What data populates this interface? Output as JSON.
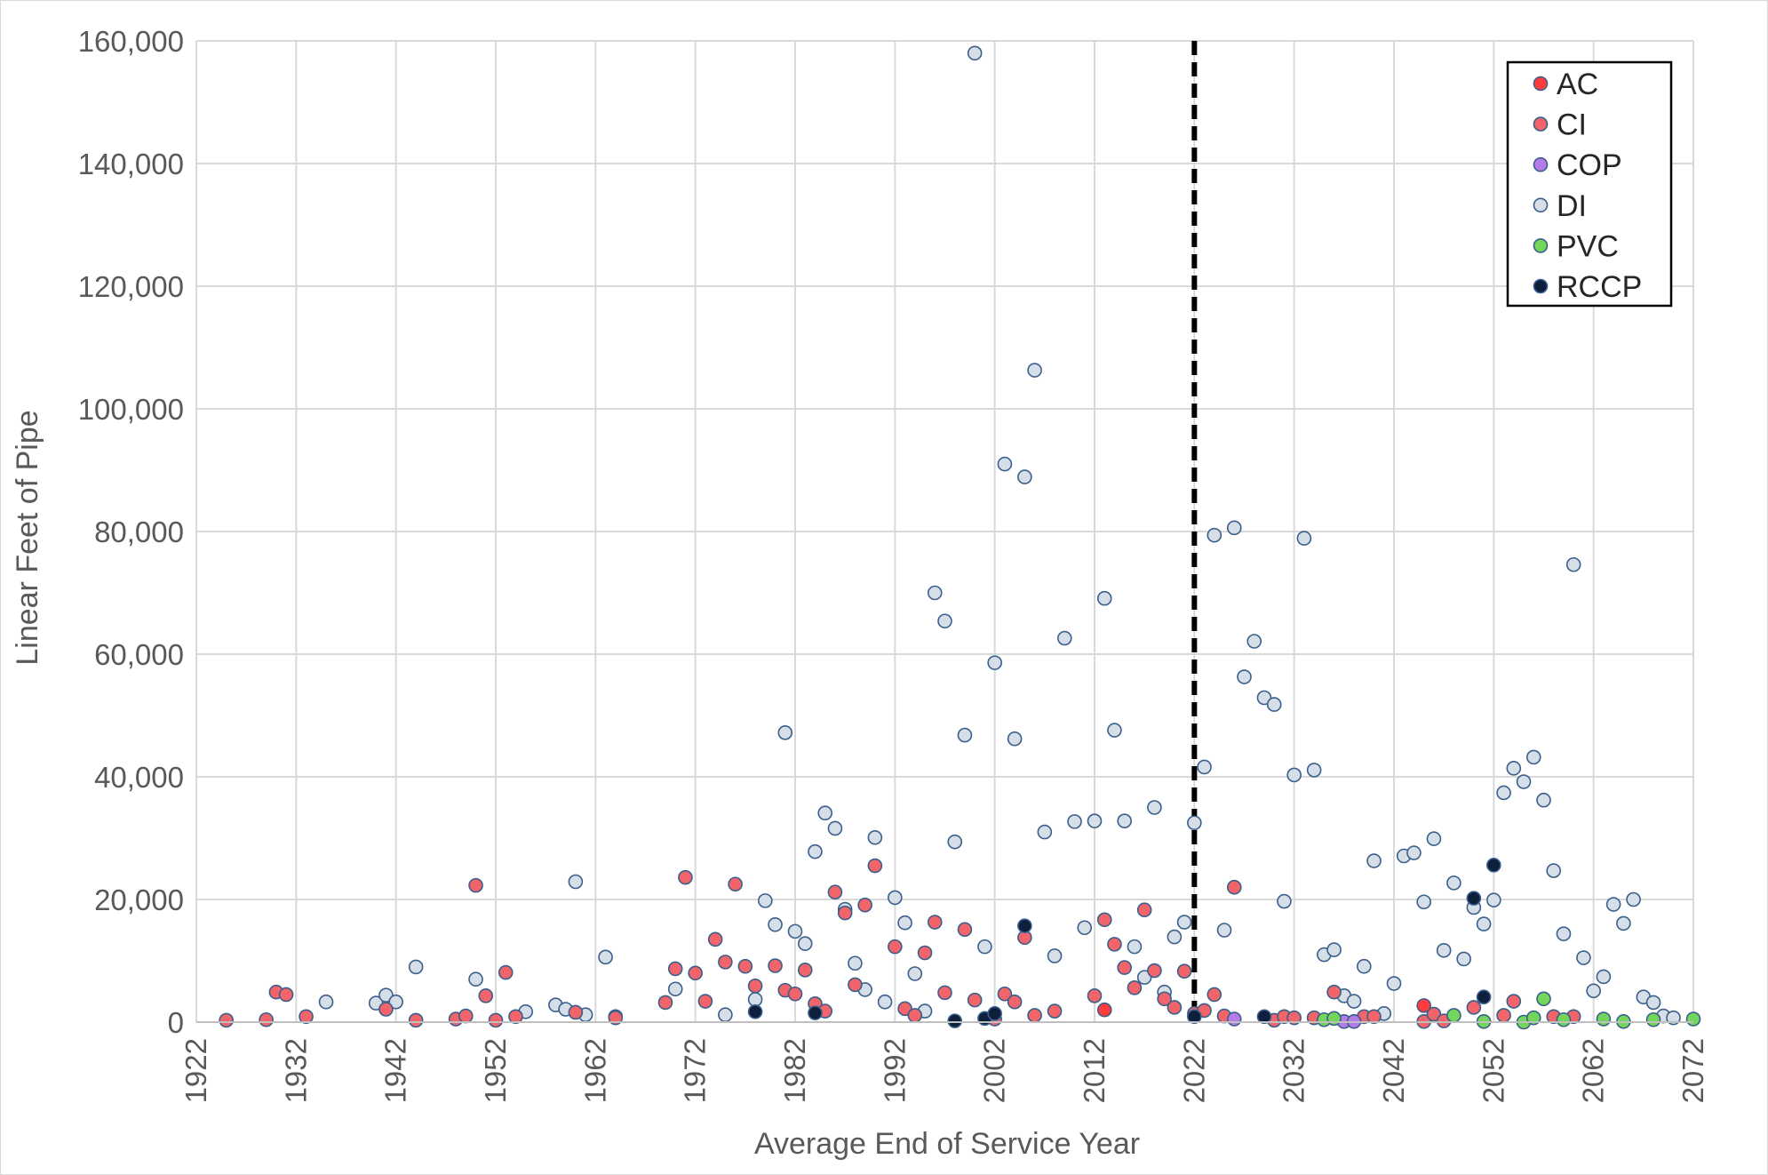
{
  "chart_data": {
    "type": "scatter",
    "title": "",
    "xlabel": "Average End of Service Year",
    "ylabel": "Linear Feet of Pipe",
    "xlim": [
      1922,
      2072
    ],
    "ylim": [
      0,
      160000
    ],
    "x_ticks": [
      "1922",
      "1932",
      "1942",
      "1952",
      "1962",
      "1972",
      "1982",
      "1992",
      "2002",
      "2012",
      "2022",
      "2032",
      "2042",
      "2052",
      "2062",
      "2072"
    ],
    "y_ticks": [
      "0",
      "20,000",
      "40,000",
      "60,000",
      "80,000",
      "100,000",
      "120,000",
      "140,000",
      "160,000"
    ],
    "y_tick_values": [
      0,
      20000,
      40000,
      60000,
      80000,
      100000,
      120000,
      140000,
      160000
    ],
    "grid": true,
    "legend_position": "top-right",
    "reference_line": {
      "x": 2022,
      "style": "dashed",
      "color": "#000000"
    },
    "series": [
      {
        "name": "AC",
        "color": "#ff3b3b",
        "points": [
          [
            2013,
            2000
          ],
          [
            2045,
            2700
          ]
        ]
      },
      {
        "name": "CI",
        "color": "#f0646a",
        "points": [
          [
            1925,
            300
          ],
          [
            1929,
            400
          ],
          [
            1930,
            4900
          ],
          [
            1931,
            4500
          ],
          [
            1933,
            900
          ],
          [
            1941,
            2100
          ],
          [
            1944,
            300
          ],
          [
            1948,
            500
          ],
          [
            1949,
            1000
          ],
          [
            1950,
            22300
          ],
          [
            1951,
            4300
          ],
          [
            1952,
            300
          ],
          [
            1953,
            8100
          ],
          [
            1954,
            900
          ],
          [
            1960,
            1600
          ],
          [
            1964,
            700
          ],
          [
            1969,
            3200
          ],
          [
            1970,
            8700
          ],
          [
            1971,
            23600
          ],
          [
            1972,
            8000
          ],
          [
            1973,
            3400
          ],
          [
            1974,
            13500
          ],
          [
            1975,
            9800
          ],
          [
            1976,
            22500
          ],
          [
            1977,
            9100
          ],
          [
            1978,
            5900
          ],
          [
            1980,
            9200
          ],
          [
            1981,
            5200
          ],
          [
            1982,
            4600
          ],
          [
            1983,
            8500
          ],
          [
            1984,
            3000
          ],
          [
            1985,
            1800
          ],
          [
            1986,
            21200
          ],
          [
            1987,
            17800
          ],
          [
            1988,
            6100
          ],
          [
            1989,
            19100
          ],
          [
            1990,
            25500
          ],
          [
            1992,
            12300
          ],
          [
            1993,
            2200
          ],
          [
            1994,
            1100
          ],
          [
            1995,
            11300
          ],
          [
            1996,
            16300
          ],
          [
            1997,
            4800
          ],
          [
            1999,
            15100
          ],
          [
            2000,
            3600
          ],
          [
            2002,
            500
          ],
          [
            2003,
            4600
          ],
          [
            2004,
            3300
          ],
          [
            2005,
            13800
          ],
          [
            2006,
            1100
          ],
          [
            2008,
            1800
          ],
          [
            2012,
            4300
          ],
          [
            2013,
            16700
          ],
          [
            2014,
            12700
          ],
          [
            2015,
            8900
          ],
          [
            2016,
            5600
          ],
          [
            2017,
            18300
          ],
          [
            2018,
            8400
          ],
          [
            2019,
            3800
          ],
          [
            2020,
            2400
          ],
          [
            2021,
            8300
          ],
          [
            2022,
            1400
          ],
          [
            2023,
            1900
          ],
          [
            2024,
            4500
          ],
          [
            2025,
            1000
          ],
          [
            2026,
            22000
          ],
          [
            2030,
            300
          ],
          [
            2031,
            900
          ],
          [
            2032,
            700
          ],
          [
            2034,
            700
          ],
          [
            2036,
            4900
          ],
          [
            2039,
            900
          ],
          [
            2040,
            900
          ],
          [
            2045,
            100
          ],
          [
            2046,
            1300
          ],
          [
            2047,
            200
          ],
          [
            2050,
            2400
          ],
          [
            2053,
            1100
          ],
          [
            2054,
            3400
          ],
          [
            2058,
            900
          ],
          [
            2060,
            900
          ]
        ]
      },
      {
        "name": "COP",
        "color": "#b57be8",
        "points": [
          [
            2026,
            500
          ],
          [
            2037,
            100
          ],
          [
            2038,
            100
          ]
        ]
      },
      {
        "name": "DI",
        "color": "#d6dfe8",
        "points": [
          [
            1935,
            3300
          ],
          [
            1940,
            3100
          ],
          [
            1941,
            4400
          ],
          [
            1942,
            3300
          ],
          [
            1944,
            9000
          ],
          [
            1950,
            7000
          ],
          [
            1955,
            1700
          ],
          [
            1958,
            2800
          ],
          [
            1959,
            2100
          ],
          [
            1960,
            22900
          ],
          [
            1961,
            1200
          ],
          [
            1963,
            10600
          ],
          [
            1964,
            900
          ],
          [
            1970,
            5400
          ],
          [
            1975,
            1200
          ],
          [
            1978,
            3700
          ],
          [
            1979,
            19800
          ],
          [
            1980,
            15900
          ],
          [
            1981,
            47200
          ],
          [
            1982,
            14800
          ],
          [
            1983,
            12800
          ],
          [
            1984,
            27800
          ],
          [
            1985,
            34100
          ],
          [
            1986,
            31600
          ],
          [
            1987,
            18400
          ],
          [
            1988,
            9600
          ],
          [
            1989,
            5300
          ],
          [
            1990,
            30100
          ],
          [
            1991,
            3300
          ],
          [
            1992,
            20300
          ],
          [
            1993,
            16200
          ],
          [
            1994,
            7900
          ],
          [
            1995,
            1800
          ],
          [
            1996,
            70000
          ],
          [
            1997,
            65400
          ],
          [
            1998,
            29400
          ],
          [
            1999,
            46800
          ],
          [
            2000,
            158000
          ],
          [
            2001,
            12300
          ],
          [
            2002,
            58600
          ],
          [
            2003,
            91000
          ],
          [
            2004,
            46200
          ],
          [
            2005,
            88900
          ],
          [
            2006,
            106300
          ],
          [
            2007,
            31000
          ],
          [
            2008,
            10800
          ],
          [
            2009,
            62600
          ],
          [
            2010,
            32700
          ],
          [
            2011,
            15400
          ],
          [
            2012,
            32800
          ],
          [
            2013,
            69100
          ],
          [
            2014,
            47600
          ],
          [
            2015,
            32800
          ],
          [
            2016,
            12300
          ],
          [
            2017,
            7300
          ],
          [
            2018,
            35000
          ],
          [
            2019,
            4900
          ],
          [
            2020,
            13900
          ],
          [
            2021,
            16300
          ],
          [
            2022,
            32500
          ],
          [
            2023,
            41600
          ],
          [
            2024,
            79400
          ],
          [
            2025,
            15000
          ],
          [
            2026,
            80600
          ],
          [
            2027,
            56300
          ],
          [
            2028,
            62100
          ],
          [
            2029,
            52900
          ],
          [
            2030,
            51800
          ],
          [
            2031,
            19700
          ],
          [
            2032,
            40300
          ],
          [
            2033,
            78900
          ],
          [
            2034,
            41100
          ],
          [
            2035,
            11000
          ],
          [
            2036,
            11800
          ],
          [
            2037,
            4300
          ],
          [
            2038,
            3400
          ],
          [
            2039,
            9100
          ],
          [
            2040,
            26300
          ],
          [
            2041,
            1400
          ],
          [
            2042,
            6300
          ],
          [
            2043,
            27100
          ],
          [
            2044,
            27600
          ],
          [
            2045,
            19600
          ],
          [
            2046,
            29900
          ],
          [
            2047,
            11700
          ],
          [
            2048,
            22700
          ],
          [
            2049,
            10300
          ],
          [
            2050,
            18700
          ],
          [
            2051,
            16000
          ],
          [
            2052,
            19900
          ],
          [
            2053,
            37400
          ],
          [
            2054,
            41400
          ],
          [
            2055,
            39200
          ],
          [
            2056,
            43200
          ],
          [
            2057,
            36200
          ],
          [
            2058,
            24700
          ],
          [
            2059,
            14400
          ],
          [
            2060,
            74600
          ],
          [
            2061,
            10500
          ],
          [
            2062,
            5100
          ],
          [
            2063,
            7400
          ],
          [
            2064,
            19200
          ],
          [
            2065,
            16100
          ],
          [
            2066,
            20000
          ],
          [
            2067,
            4100
          ],
          [
            2068,
            3200
          ],
          [
            2069,
            1000
          ],
          [
            2070,
            700
          ]
        ]
      },
      {
        "name": "PVC",
        "color": "#72d65a",
        "points": [
          [
            2035,
            400
          ],
          [
            2036,
            600
          ],
          [
            2048,
            1100
          ],
          [
            2051,
            100
          ],
          [
            2055,
            0
          ],
          [
            2056,
            700
          ],
          [
            2057,
            3800
          ],
          [
            2059,
            400
          ],
          [
            2063,
            500
          ],
          [
            2065,
            100
          ],
          [
            2068,
            400
          ],
          [
            2072,
            500
          ]
        ]
      },
      {
        "name": "RCCP",
        "color": "#0e1f3b",
        "points": [
          [
            1978,
            1700
          ],
          [
            1984,
            1500
          ],
          [
            1998,
            200
          ],
          [
            2001,
            600
          ],
          [
            2002,
            1400
          ],
          [
            2005,
            15700
          ],
          [
            2022,
            900
          ],
          [
            2029,
            900
          ],
          [
            2050,
            20200
          ],
          [
            2051,
            4100
          ],
          [
            2052,
            25600
          ]
        ]
      }
    ]
  }
}
